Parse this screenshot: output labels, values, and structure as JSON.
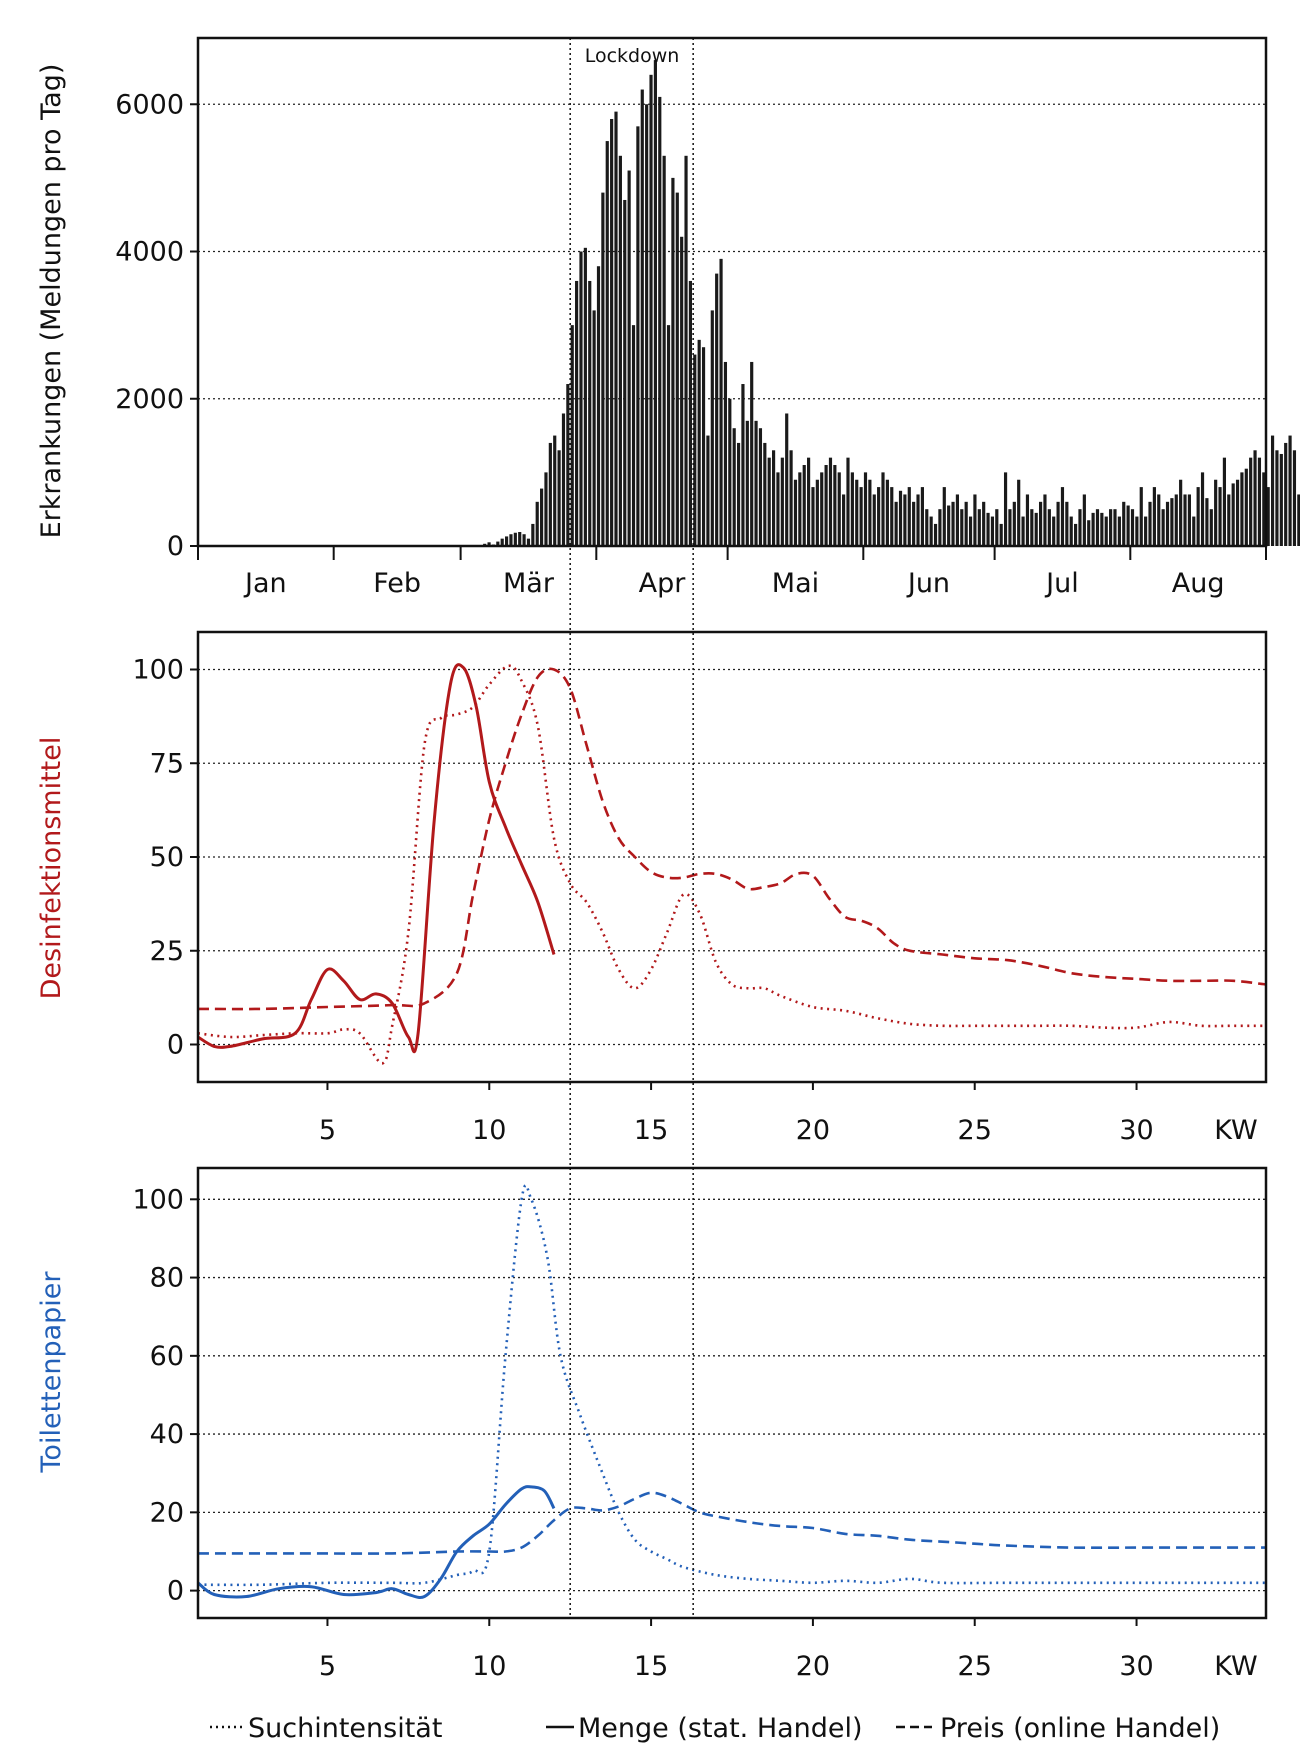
{
  "chart_data": [
    {
      "type": "bar",
      "ylabel": "Erkrankungen (Meldungen pro Tag)",
      "ylim": [
        0,
        6900
      ],
      "yticks": [
        0,
        2000,
        4000,
        6000
      ],
      "ytick_labels": [
        "0",
        "2000",
        "4000",
        "6000"
      ],
      "month_labels": [
        "Jan",
        "Feb",
        "Mär",
        "Apr",
        "Mai",
        "Jun",
        "Jul",
        "Aug"
      ],
      "annotation": "Lockdown",
      "grid": "horizontal dotted",
      "x_start_day": 36,
      "values": [
        0,
        0,
        0,
        0,
        0,
        0,
        0,
        0,
        0,
        0,
        0,
        0,
        0,
        0,
        0,
        0,
        0,
        0,
        0,
        0,
        0,
        0,
        0,
        0,
        0,
        0,
        0,
        0,
        0,
        30,
        50,
        20,
        60,
        100,
        130,
        160,
        180,
        190,
        160,
        100,
        300,
        600,
        780,
        1000,
        1400,
        1500,
        1300,
        1800,
        2200,
        3000,
        3600,
        4000,
        4050,
        3600,
        3200,
        3800,
        4800,
        5500,
        5800,
        5900,
        5300,
        4700,
        5100,
        3000,
        5700,
        6200,
        6000,
        6400,
        6600,
        6100,
        5300,
        3000,
        5000,
        4800,
        4200,
        5300,
        3600,
        2600,
        2800,
        2700,
        1500,
        3200,
        3700,
        3900,
        2500,
        2000,
        1600,
        1400,
        2200,
        1700,
        2500,
        1700,
        1600,
        1400,
        1200,
        1300,
        1000,
        1200,
        1800,
        1300,
        900,
        1000,
        1100,
        1200,
        800,
        900,
        1000,
        1100,
        1200,
        1100,
        1000,
        700,
        1200,
        1000,
        900,
        800,
        1000,
        900,
        700,
        800,
        1000,
        900,
        800,
        600,
        750,
        700,
        800,
        600,
        700,
        800,
        500,
        400,
        300,
        500,
        800,
        550,
        600,
        700,
        500,
        600,
        400,
        700,
        500,
        600,
        450,
        400,
        500,
        300,
        1000,
        500,
        600,
        900,
        400,
        700,
        500,
        450,
        600,
        700,
        500,
        400,
        600,
        800,
        600,
        400,
        300,
        500,
        700,
        350,
        450,
        500,
        450,
        400,
        500,
        500,
        400,
        600,
        550,
        500,
        400,
        800,
        400,
        600,
        800,
        700,
        500,
        600,
        650,
        700,
        900,
        700,
        700,
        400,
        800,
        1000,
        650,
        500,
        900,
        800,
        1200,
        700,
        850,
        900,
        1000,
        1050,
        1200,
        1300,
        1200,
        1000,
        800,
        1500,
        1300,
        1250,
        1400,
        1500,
        1300,
        700,
        900,
        1550,
        1400,
        1500,
        1700,
        1550,
        1000,
        1500,
        1750,
        1500
      ]
    },
    {
      "type": "line",
      "ylabel": "Desinfektionsmittel",
      "color": "#b2191b",
      "xlim": [
        1,
        34
      ],
      "ylim": [
        -10,
        110
      ],
      "yticks": [
        0,
        25,
        50,
        75,
        100
      ],
      "ytick_labels": [
        "0",
        "25",
        "50",
        "75",
        "100"
      ],
      "xticks": [
        5,
        10,
        15,
        20,
        25,
        30
      ],
      "xtick_labels": [
        "5",
        "10",
        "15",
        "20",
        "25",
        "30"
      ],
      "x_unit_label": "KW",
      "grid": "horizontal dotted",
      "series": [
        {
          "style": "dotted",
          "points": [
            [
              1,
              3
            ],
            [
              2,
              2
            ],
            [
              3,
              2.5
            ],
            [
              4,
              3
            ],
            [
              5,
              3
            ],
            [
              5.5,
              4
            ],
            [
              6,
              3
            ],
            [
              6.7,
              -5
            ],
            [
              7,
              5
            ],
            [
              7.5,
              30
            ],
            [
              8,
              80
            ],
            [
              8.5,
              87
            ],
            [
              9,
              88
            ],
            [
              9.5,
              90
            ],
            [
              10,
              96
            ],
            [
              10.6,
              101
            ],
            [
              11,
              97
            ],
            [
              11.5,
              85
            ],
            [
              12,
              55
            ],
            [
              12.5,
              43
            ],
            [
              13,
              38
            ],
            [
              13.5,
              30
            ],
            [
              14,
              20
            ],
            [
              14.5,
              15
            ],
            [
              15,
              20
            ],
            [
              15.5,
              30
            ],
            [
              16,
              40
            ],
            [
              16.5,
              35
            ],
            [
              17,
              22
            ],
            [
              17.5,
              16
            ],
            [
              18,
              15
            ],
            [
              18.5,
              15
            ],
            [
              19,
              13
            ],
            [
              20,
              10
            ],
            [
              21,
              9
            ],
            [
              22,
              7
            ],
            [
              23,
              5.5
            ],
            [
              24,
              5
            ],
            [
              25,
              5
            ],
            [
              26,
              5
            ],
            [
              27,
              5
            ],
            [
              28,
              5
            ],
            [
              29,
              4.5
            ],
            [
              30,
              4.5
            ],
            [
              31,
              6
            ],
            [
              32,
              5
            ],
            [
              33,
              5
            ],
            [
              34,
              5
            ]
          ]
        },
        {
          "style": "solid",
          "points": [
            [
              1,
              2
            ],
            [
              1.5,
              -0.5
            ],
            [
              2,
              -0.5
            ],
            [
              3,
              1.5
            ],
            [
              4,
              3
            ],
            [
              4.5,
              12
            ],
            [
              5,
              20
            ],
            [
              5.5,
              17
            ],
            [
              6,
              12
            ],
            [
              6.5,
              13.5
            ],
            [
              7,
              11
            ],
            [
              7.5,
              2
            ],
            [
              7.8,
              3
            ],
            [
              8.3,
              60
            ],
            [
              8.8,
              96
            ],
            [
              9.2,
              100.5
            ],
            [
              9.6,
              90
            ],
            [
              10,
              70
            ],
            [
              10.5,
              58
            ],
            [
              11,
              48
            ],
            [
              11.5,
              38
            ],
            [
              12,
              24
            ]
          ]
        },
        {
          "style": "dashed",
          "points": [
            [
              1,
              9.5
            ],
            [
              3,
              9.5
            ],
            [
              5,
              10
            ],
            [
              7,
              10.5
            ],
            [
              8,
              11
            ],
            [
              9,
              19
            ],
            [
              9.5,
              40
            ],
            [
              10,
              60
            ],
            [
              10.5,
              75
            ],
            [
              11,
              88
            ],
            [
              11.5,
              98
            ],
            [
              12,
              100
            ],
            [
              12.5,
              95
            ],
            [
              13,
              80
            ],
            [
              13.5,
              65
            ],
            [
              14,
              55
            ],
            [
              14.5,
              50
            ],
            [
              15,
              46
            ],
            [
              15.5,
              44.5
            ],
            [
              16,
              44.5
            ],
            [
              16.5,
              45.5
            ],
            [
              17,
              45.5
            ],
            [
              17.5,
              44
            ],
            [
              18,
              41.5
            ],
            [
              18.5,
              42
            ],
            [
              19,
              43
            ],
            [
              19.5,
              45.5
            ],
            [
              20,
              45
            ],
            [
              20.5,
              39
            ],
            [
              21,
              34
            ],
            [
              21.5,
              33
            ],
            [
              22,
              31
            ],
            [
              22.5,
              27
            ],
            [
              23,
              25
            ],
            [
              24,
              24
            ],
            [
              25,
              23
            ],
            [
              26,
              22.5
            ],
            [
              27,
              21
            ],
            [
              28,
              19
            ],
            [
              29,
              18
            ],
            [
              30,
              17.5
            ],
            [
              31,
              17
            ],
            [
              32,
              17
            ],
            [
              33,
              17
            ],
            [
              34,
              16
            ]
          ]
        }
      ]
    },
    {
      "type": "line",
      "ylabel": "Toilettenpapier",
      "color": "#2360b8",
      "xlim": [
        1,
        34
      ],
      "ylim": [
        -7,
        108
      ],
      "yticks": [
        0,
        20,
        40,
        60,
        80,
        100
      ],
      "ytick_labels": [
        "0",
        "20",
        "40",
        "60",
        "80",
        "100"
      ],
      "xticks": [
        5,
        10,
        15,
        20,
        25,
        30
      ],
      "xtick_labels": [
        "5",
        "10",
        "15",
        "20",
        "25",
        "30"
      ],
      "x_unit_label": "KW",
      "grid": "horizontal dotted",
      "series": [
        {
          "style": "dotted",
          "points": [
            [
              1,
              1.5
            ],
            [
              3,
              1.5
            ],
            [
              5,
              2
            ],
            [
              7,
              2
            ],
            [
              8,
              2
            ],
            [
              9,
              4
            ],
            [
              9.5,
              5
            ],
            [
              10,
              10
            ],
            [
              10.5,
              60
            ],
            [
              11,
              100
            ],
            [
              11.3,
              100
            ],
            [
              11.8,
              85
            ],
            [
              12.2,
              60
            ],
            [
              12.8,
              45
            ],
            [
              13.5,
              30
            ],
            [
              14,
              20
            ],
            [
              14.5,
              13
            ],
            [
              15,
              10
            ],
            [
              15.5,
              8
            ],
            [
              16,
              6
            ],
            [
              17,
              4
            ],
            [
              18,
              3
            ],
            [
              19,
              2.5
            ],
            [
              20,
              2
            ],
            [
              21,
              2.5
            ],
            [
              22,
              2
            ],
            [
              23,
              3
            ],
            [
              24,
              2
            ],
            [
              26,
              2
            ],
            [
              28,
              2
            ],
            [
              30,
              2
            ],
            [
              32,
              2
            ],
            [
              34,
              2
            ]
          ]
        },
        {
          "style": "solid",
          "points": [
            [
              1,
              2
            ],
            [
              1.5,
              -1
            ],
            [
              2.5,
              -1.5
            ],
            [
              3.5,
              0.5
            ],
            [
              4.5,
              1
            ],
            [
              5.5,
              -1
            ],
            [
              6.5,
              -0.5
            ],
            [
              7,
              0.5
            ],
            [
              7.5,
              -1
            ],
            [
              8,
              -1.5
            ],
            [
              8.5,
              3
            ],
            [
              9,
              10
            ],
            [
              9.5,
              14
            ],
            [
              10,
              17
            ],
            [
              10.5,
              22
            ],
            [
              11,
              26
            ],
            [
              11.3,
              26.5
            ],
            [
              11.7,
              25.5
            ],
            [
              12,
              21
            ]
          ]
        },
        {
          "style": "dashed",
          "points": [
            [
              1,
              9.5
            ],
            [
              4,
              9.5
            ],
            [
              7,
              9.5
            ],
            [
              9,
              10
            ],
            [
              10,
              10
            ],
            [
              10.5,
              10
            ],
            [
              11,
              11
            ],
            [
              11.5,
              14
            ],
            [
              12,
              18
            ],
            [
              12.5,
              21
            ],
            [
              13,
              21
            ],
            [
              13.5,
              20.5
            ],
            [
              14,
              21.5
            ],
            [
              14.5,
              23.5
            ],
            [
              15,
              25
            ],
            [
              15.5,
              24
            ],
            [
              16,
              22
            ],
            [
              16.5,
              20
            ],
            [
              17,
              19
            ],
            [
              18,
              17.5
            ],
            [
              19,
              16.5
            ],
            [
              20,
              16
            ],
            [
              21,
              14.5
            ],
            [
              22,
              14
            ],
            [
              23,
              13
            ],
            [
              24,
              12.5
            ],
            [
              25,
              12
            ],
            [
              26,
              11.5
            ],
            [
              28,
              11
            ],
            [
              30,
              11
            ],
            [
              32,
              11
            ],
            [
              34,
              11
            ]
          ]
        }
      ]
    }
  ],
  "lockdown_lines_kw": [
    12.5,
    16.3
  ],
  "legend": [
    {
      "label": "Suchintensität",
      "style": "dotted"
    },
    {
      "label": "Menge (stat. Handel)",
      "style": "solid"
    },
    {
      "label": "Preis (online Handel)",
      "style": "dashed"
    }
  ]
}
